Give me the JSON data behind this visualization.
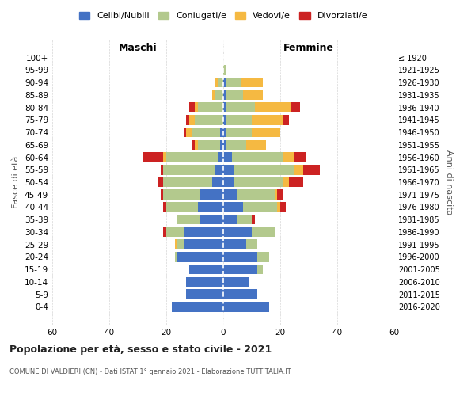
{
  "age_groups": [
    "100+",
    "95-99",
    "90-94",
    "85-89",
    "80-84",
    "75-79",
    "70-74",
    "65-69",
    "60-64",
    "55-59",
    "50-54",
    "45-49",
    "40-44",
    "35-39",
    "30-34",
    "25-29",
    "20-24",
    "15-19",
    "10-14",
    "5-9",
    "0-4"
  ],
  "birth_years": [
    "≤ 1920",
    "1921-1925",
    "1926-1930",
    "1931-1935",
    "1936-1940",
    "1941-1945",
    "1946-1950",
    "1951-1955",
    "1956-1960",
    "1961-1965",
    "1966-1970",
    "1971-1975",
    "1976-1980",
    "1981-1985",
    "1986-1990",
    "1991-1995",
    "1996-2000",
    "2001-2005",
    "2006-2010",
    "2011-2015",
    "2016-2020"
  ],
  "males": {
    "celibi": [
      0,
      0,
      0,
      0,
      0,
      0,
      1,
      1,
      2,
      3,
      4,
      8,
      9,
      8,
      14,
      14,
      16,
      12,
      13,
      13,
      18
    ],
    "coniugati": [
      0,
      0,
      2,
      3,
      9,
      10,
      10,
      8,
      18,
      18,
      17,
      13,
      11,
      8,
      6,
      2,
      1,
      0,
      0,
      0,
      0
    ],
    "vedovi": [
      0,
      0,
      1,
      1,
      1,
      2,
      2,
      1,
      1,
      0,
      0,
      0,
      0,
      0,
      0,
      1,
      0,
      0,
      0,
      0,
      0
    ],
    "divorziati": [
      0,
      0,
      0,
      0,
      2,
      1,
      1,
      1,
      7,
      1,
      2,
      1,
      1,
      0,
      1,
      0,
      0,
      0,
      0,
      0,
      0
    ]
  },
  "females": {
    "nubili": [
      0,
      0,
      1,
      1,
      1,
      1,
      1,
      1,
      3,
      4,
      4,
      5,
      7,
      5,
      10,
      8,
      12,
      12,
      9,
      12,
      16
    ],
    "coniugate": [
      0,
      1,
      5,
      6,
      10,
      9,
      9,
      7,
      18,
      21,
      17,
      13,
      12,
      5,
      8,
      4,
      4,
      2,
      0,
      0,
      0
    ],
    "vedove": [
      0,
      0,
      8,
      7,
      13,
      11,
      10,
      7,
      4,
      3,
      2,
      1,
      1,
      0,
      0,
      0,
      0,
      0,
      0,
      0,
      0
    ],
    "divorziate": [
      0,
      0,
      0,
      0,
      3,
      2,
      0,
      0,
      4,
      6,
      5,
      2,
      2,
      1,
      0,
      0,
      0,
      0,
      0,
      0,
      0
    ]
  },
  "colors": {
    "celibi": "#4472c4",
    "coniugati": "#b3c98d",
    "vedovi": "#f5b942",
    "divorziati": "#cc2222"
  },
  "xlim": [
    -60,
    60
  ],
  "xticks": [
    -60,
    -40,
    -20,
    0,
    20,
    40,
    60
  ],
  "xticklabels": [
    "60",
    "40",
    "20",
    "0",
    "20",
    "40",
    "60"
  ],
  "title": "Popolazione per età, sesso e stato civile - 2021",
  "subtitle": "COMUNE DI VALDIERI (CN) - Dati ISTAT 1° gennaio 2021 - Elaborazione TUTTITALIA.IT",
  "ylabel_left": "Fasce di età",
  "ylabel_right": "Anni di nascita",
  "maschi_label": "Maschi",
  "femmine_label": "Femmine",
  "legend_labels": [
    "Celibi/Nubili",
    "Coniugati/e",
    "Vedovi/e",
    "Divorziati/e"
  ],
  "background_color": "#ffffff",
  "grid_color": "#cccccc"
}
